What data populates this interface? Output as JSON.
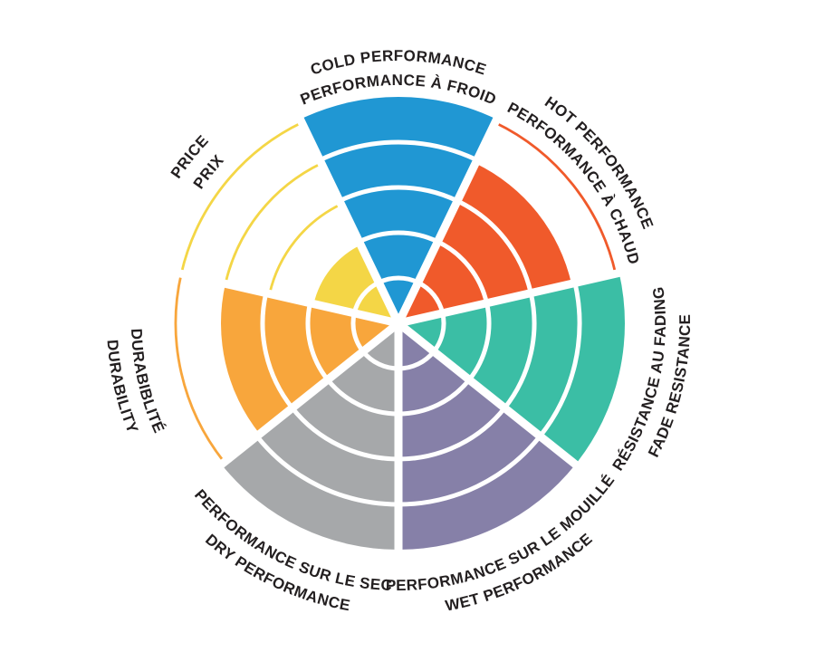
{
  "chart_data": {
    "type": "polar-sector-rating-wheel",
    "title": "",
    "max_level": 5,
    "num_rings": 5,
    "background_color": "#FFFFFF",
    "text_color": "#231F20",
    "grid_color": "#FFFFFF",
    "legend_position": "labels-around-circle",
    "notes": "Each spoke filled from center to its value; unfilled levels shown as thin colored arcs outside the fill",
    "categories": [
      {
        "id": "cold",
        "label_line1": "COLD PERFORMANCE",
        "label_line2": "PERFORMANCE À FROID",
        "value": 5,
        "color": "#2097D3",
        "label_position": "top"
      },
      {
        "id": "hot",
        "label_line1": "HOT PERFORMANCE",
        "label_line2": "PERFORMANCE À CHAUD",
        "value": 4,
        "color": "#F05A2B",
        "label_position": "top"
      },
      {
        "id": "fade",
        "label_line1": "RÉSISTANCE AU FADING",
        "label_line2": "FADE RESISTANCE",
        "value": 5,
        "color": "#3BBEA5",
        "label_position": "bottom"
      },
      {
        "id": "wet",
        "label_line1": "PERFORMANCE SUR LE MOUILLÉ",
        "label_line2": "WET PERFORMANCE",
        "value": 5,
        "color": "#8680A8",
        "label_position": "bottom"
      },
      {
        "id": "dry",
        "label_line1": "PERFORMANCE SUR LE SEC",
        "label_line2": "DRY PERFORMANCE",
        "value": 5,
        "color": "#A6A8AA",
        "label_position": "bottom"
      },
      {
        "id": "durability",
        "label_line1": "DURABIBLITÉ",
        "label_line2": "DURABILITY",
        "value": 4,
        "color": "#F8A63C",
        "label_position": "bottom"
      },
      {
        "id": "price",
        "label_line1": "PRICE",
        "label_line2": "PRIX",
        "value": 2,
        "color": "#F4D646",
        "label_position": "top"
      }
    ]
  }
}
